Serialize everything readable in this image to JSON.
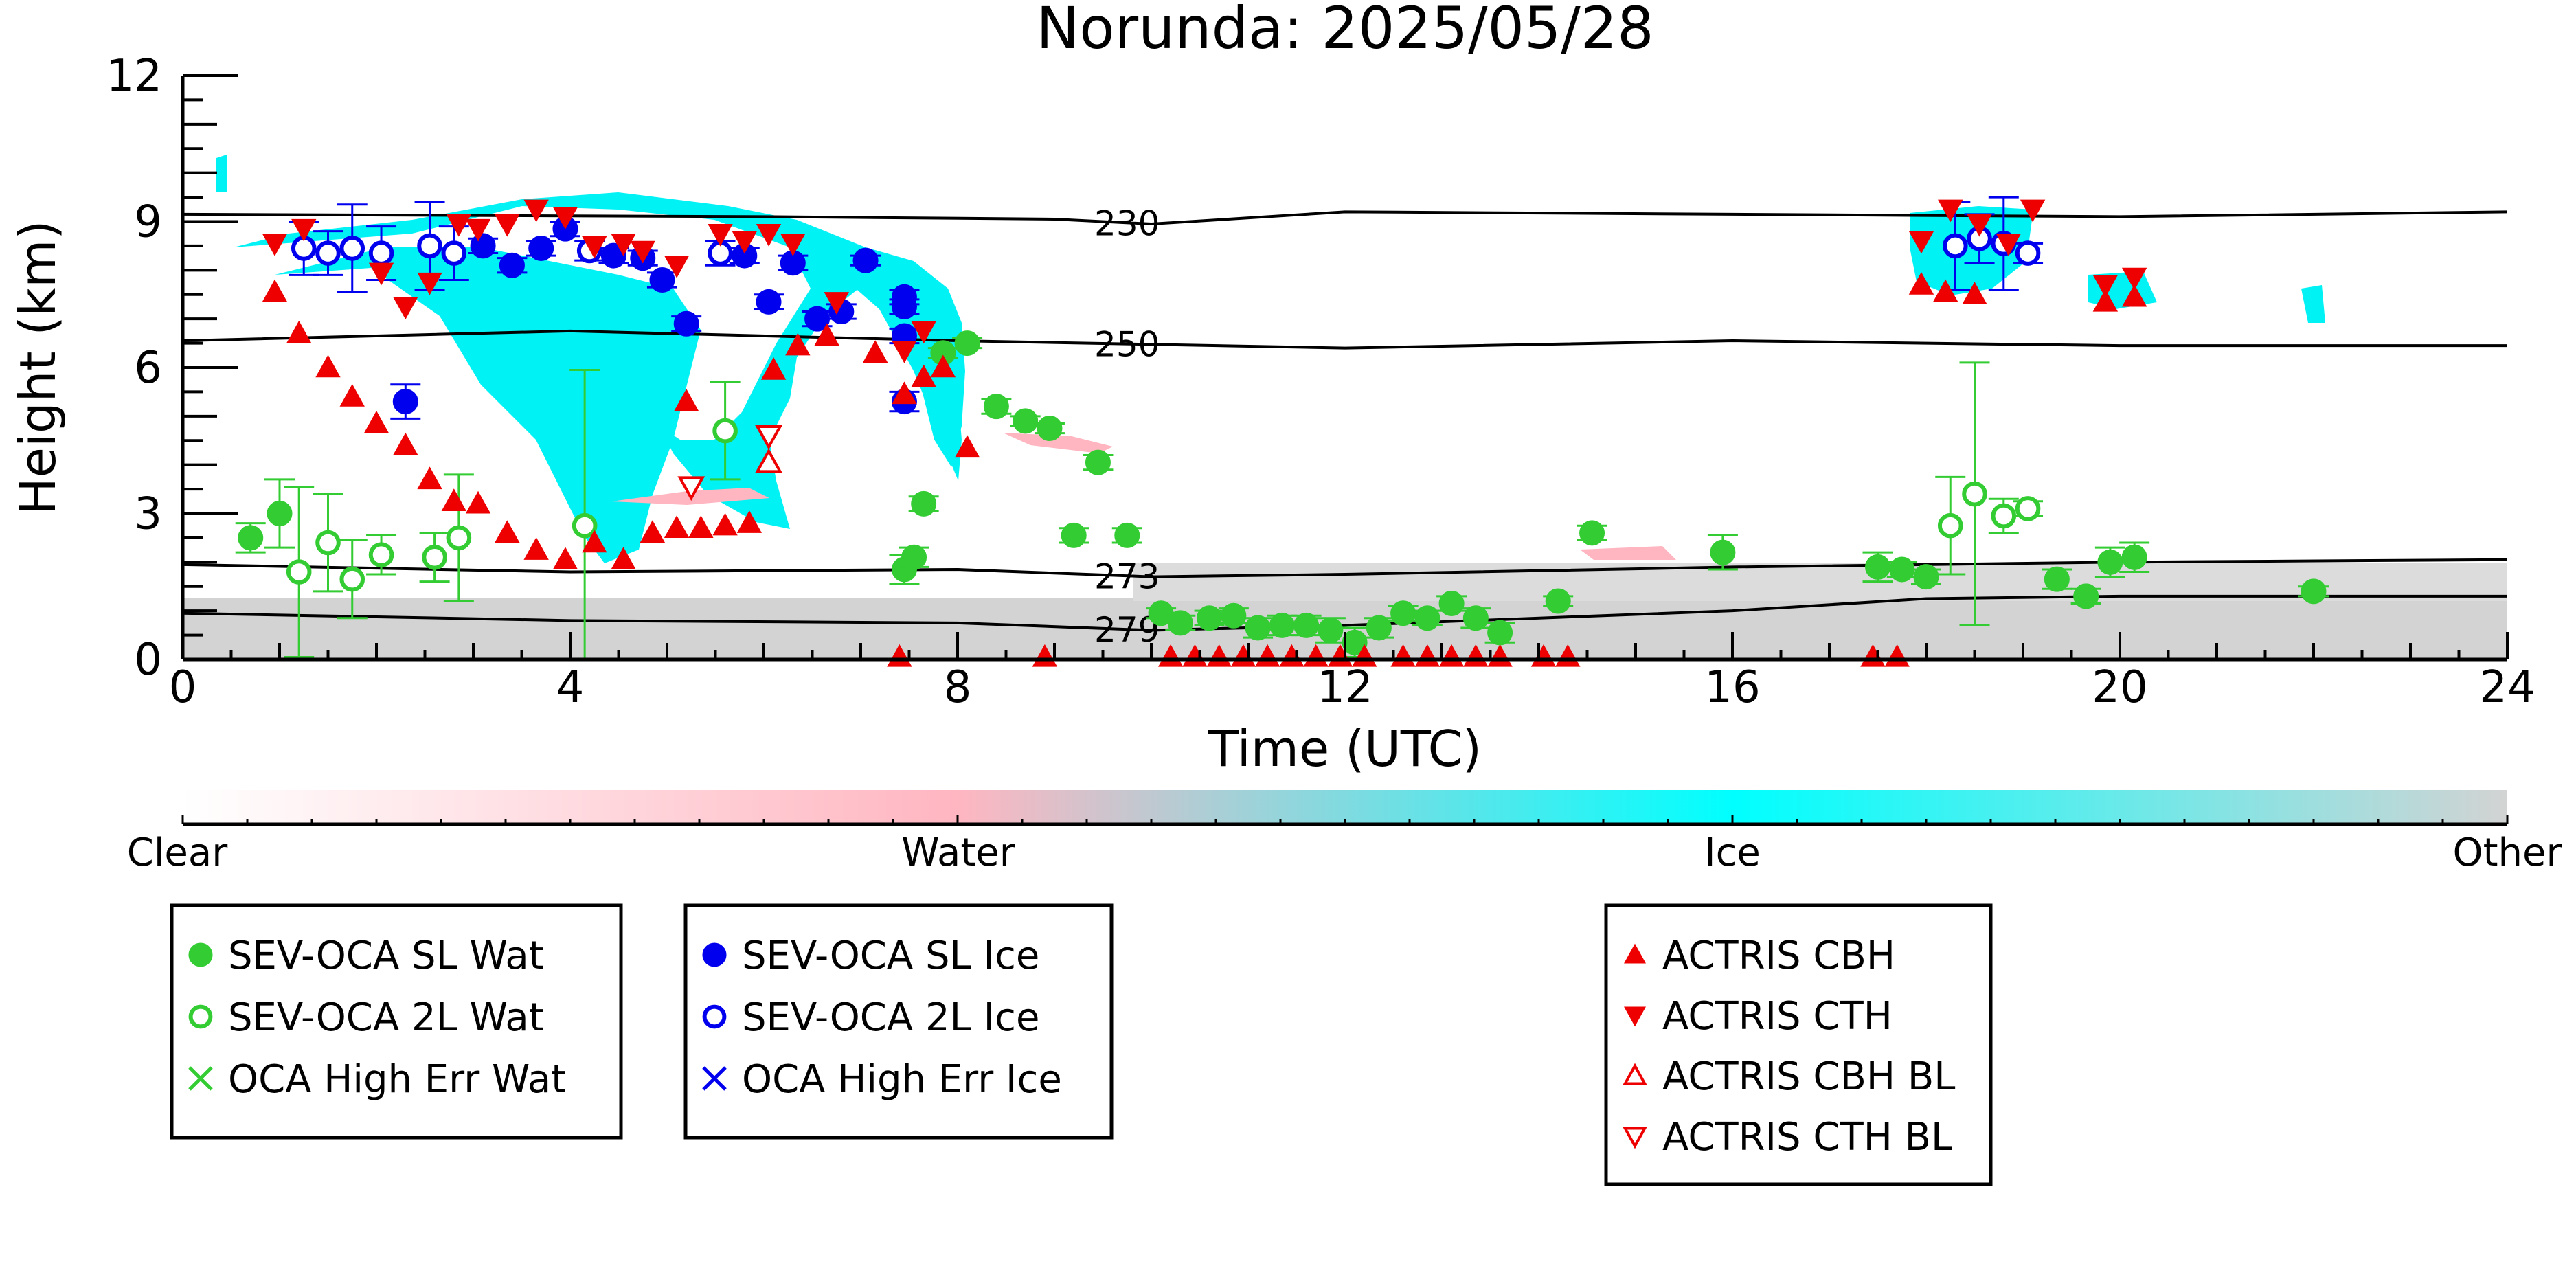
{
  "chart_data": {
    "type": "scatter",
    "title": "Norunda: 2025/05/28",
    "xlabel": "Time (UTC)",
    "ylabel": "Height (km)",
    "xlim": [
      0,
      24
    ],
    "ylim": [
      0,
      12
    ],
    "xticks": [
      0,
      4,
      8,
      12,
      16,
      20,
      24
    ],
    "yticks": [
      0,
      3,
      6,
      9,
      12
    ],
    "background": "cloud phase cross-section (clear / water / ice / other)",
    "colorbar": {
      "labels": [
        "Clear",
        "Water",
        "Ice",
        "Other"
      ],
      "colors": [
        "#ffffff",
        "#ffb6c1",
        "#00ffff",
        "#d3d3d3"
      ]
    },
    "temperature_contours": [
      {
        "label": "230",
        "x": [
          0,
          6,
          9,
          10,
          12,
          16,
          20,
          24
        ],
        "y": [
          9.15,
          9.1,
          9.05,
          8.95,
          9.2,
          9.15,
          9.1,
          9.2
        ]
      },
      {
        "label": "250",
        "x": [
          0,
          4,
          8,
          12,
          16,
          20,
          24
        ],
        "y": [
          6.55,
          6.75,
          6.55,
          6.4,
          6.55,
          6.45,
          6.45
        ]
      },
      {
        "label": "273",
        "x": [
          0,
          4,
          8,
          10,
          12,
          16,
          20,
          24
        ],
        "y": [
          1.95,
          1.8,
          1.85,
          1.7,
          1.75,
          1.9,
          2.0,
          2.05
        ]
      },
      {
        "label": "279",
        "x": [
          0,
          4,
          8,
          10,
          12,
          16,
          18,
          20,
          24
        ],
        "y": [
          0.95,
          0.8,
          0.75,
          0.6,
          0.7,
          1.0,
          1.25,
          1.3,
          1.3
        ]
      }
    ],
    "series": [
      {
        "name": "SEV-OCA SL Wat",
        "marker": "filled-circle",
        "color": "#33cc33",
        "points": [
          {
            "x": 0.7,
            "y": 2.5,
            "err": 0.3
          },
          {
            "x": 1.0,
            "y": 3.0,
            "err": 0.7
          },
          {
            "x": 7.45,
            "y": 1.85,
            "err": 0.3
          },
          {
            "x": 7.55,
            "y": 2.1,
            "err": 0.2
          },
          {
            "x": 7.65,
            "y": 3.2,
            "err": 0.15
          },
          {
            "x": 7.85,
            "y": 6.3,
            "err": 0.1
          },
          {
            "x": 8.1,
            "y": 6.5,
            "err": 0.1
          },
          {
            "x": 8.4,
            "y": 5.2,
            "err": 0.15
          },
          {
            "x": 8.7,
            "y": 4.9,
            "err": 0.1
          },
          {
            "x": 8.95,
            "y": 4.75,
            "err": 0.1
          },
          {
            "x": 9.2,
            "y": 2.55,
            "err": 0.15
          },
          {
            "x": 9.45,
            "y": 4.05,
            "err": 0.15
          },
          {
            "x": 9.75,
            "y": 2.55,
            "err": 0.15
          },
          {
            "x": 10.1,
            "y": 0.95,
            "err": 0.1
          },
          {
            "x": 10.3,
            "y": 0.75,
            "err": 0.15
          },
          {
            "x": 10.6,
            "y": 0.85,
            "err": 0.15
          },
          {
            "x": 10.85,
            "y": 0.9,
            "err": 0.15
          },
          {
            "x": 11.1,
            "y": 0.65,
            "err": 0.2
          },
          {
            "x": 11.35,
            "y": 0.7,
            "err": 0.2
          },
          {
            "x": 11.6,
            "y": 0.7,
            "err": 0.2
          },
          {
            "x": 11.85,
            "y": 0.6,
            "err": 0.25
          },
          {
            "x": 12.1,
            "y": 0.35,
            "err": 0.3
          },
          {
            "x": 12.35,
            "y": 0.65,
            "err": 0.2
          },
          {
            "x": 12.6,
            "y": 0.95,
            "err": 0.15
          },
          {
            "x": 12.85,
            "y": 0.85,
            "err": 0.15
          },
          {
            "x": 13.1,
            "y": 1.15,
            "err": 0.15
          },
          {
            "x": 13.35,
            "y": 0.85,
            "err": 0.2
          },
          {
            "x": 13.6,
            "y": 0.55,
            "err": 0.2
          },
          {
            "x": 14.2,
            "y": 1.2,
            "err": 0.1
          },
          {
            "x": 14.55,
            "y": 2.6,
            "err": 0.15
          },
          {
            "x": 15.9,
            "y": 2.2,
            "err": 0.35
          },
          {
            "x": 17.5,
            "y": 1.9,
            "err": 0.3
          },
          {
            "x": 17.75,
            "y": 1.85,
            "err": 0.15
          },
          {
            "x": 18.0,
            "y": 1.7,
            "err": 0.15
          },
          {
            "x": 19.35,
            "y": 1.65,
            "err": 0.2
          },
          {
            "x": 19.65,
            "y": 1.3,
            "err": 0.15
          },
          {
            "x": 19.9,
            "y": 2.0,
            "err": 0.3
          },
          {
            "x": 20.15,
            "y": 2.1,
            "err": 0.3
          },
          {
            "x": 22.0,
            "y": 1.4,
            "err": 0.1
          }
        ]
      },
      {
        "name": "SEV-OCA 2L Wat",
        "marker": "open-circle",
        "color": "#33cc33",
        "points": [
          {
            "x": 1.2,
            "y": 1.8,
            "err": 1.75
          },
          {
            "x": 1.5,
            "y": 2.4,
            "err": 1.0
          },
          {
            "x": 1.75,
            "y": 1.65,
            "err": 0.8
          },
          {
            "x": 2.05,
            "y": 2.15,
            "err": 0.4
          },
          {
            "x": 2.6,
            "y": 2.1,
            "err": 0.5
          },
          {
            "x": 2.85,
            "y": 2.5,
            "err": 1.3
          },
          {
            "x": 4.15,
            "y": 2.75,
            "err": 3.2
          },
          {
            "x": 5.6,
            "y": 4.7,
            "err": 1.0
          },
          {
            "x": 18.25,
            "y": 2.75,
            "err": 1.0
          },
          {
            "x": 18.5,
            "y": 3.4,
            "err": 2.7
          },
          {
            "x": 18.8,
            "y": 2.95,
            "err": 0.35
          },
          {
            "x": 19.05,
            "y": 3.1,
            "err": 0.15
          }
        ]
      },
      {
        "name": "OCA High Err Wat",
        "marker": "x",
        "color": "#33cc33",
        "points": []
      },
      {
        "name": "SEV-OCA SL Ice",
        "marker": "filled-circle",
        "color": "#0000ee",
        "points": [
          {
            "x": 2.3,
            "y": 5.3,
            "err": 0.35
          },
          {
            "x": 3.1,
            "y": 8.5,
            "err": 0.15
          },
          {
            "x": 3.4,
            "y": 8.1,
            "err": 0.15
          },
          {
            "x": 3.7,
            "y": 8.45,
            "err": 0.15
          },
          {
            "x": 3.95,
            "y": 8.85,
            "err": 0.15
          },
          {
            "x": 4.45,
            "y": 8.3,
            "err": 0.15
          },
          {
            "x": 4.75,
            "y": 8.25,
            "err": 0.15
          },
          {
            "x": 4.95,
            "y": 7.8,
            "err": 0.15
          },
          {
            "x": 5.2,
            "y": 6.9,
            "err": 0.15
          },
          {
            "x": 5.8,
            "y": 8.3,
            "err": 0.15
          },
          {
            "x": 6.05,
            "y": 7.35,
            "err": 0.15
          },
          {
            "x": 6.3,
            "y": 8.15,
            "err": 0.15
          },
          {
            "x": 6.55,
            "y": 7.0,
            "err": 0.15
          },
          {
            "x": 6.8,
            "y": 7.15,
            "err": 0.15
          },
          {
            "x": 7.05,
            "y": 8.2,
            "err": 0.1
          },
          {
            "x": 7.45,
            "y": 7.45,
            "err": 0.15
          },
          {
            "x": 7.45,
            "y": 7.25,
            "err": 0.15
          },
          {
            "x": 7.45,
            "y": 6.65,
            "err": 0.15
          },
          {
            "x": 7.45,
            "y": 5.3,
            "err": 0.2
          }
        ]
      },
      {
        "name": "SEV-OCA 2L Ice",
        "marker": "open-circle",
        "color": "#0000ee",
        "points": [
          {
            "x": 1.25,
            "y": 8.45,
            "err": 0.55
          },
          {
            "x": 1.5,
            "y": 8.35,
            "err": 0.45
          },
          {
            "x": 1.75,
            "y": 8.45,
            "err": 0.9
          },
          {
            "x": 2.05,
            "y": 8.35,
            "err": 0.55
          },
          {
            "x": 2.55,
            "y": 8.5,
            "err": 0.9
          },
          {
            "x": 2.8,
            "y": 8.35,
            "err": 0.55
          },
          {
            "x": 4.2,
            "y": 8.4,
            "err": 0.2
          },
          {
            "x": 5.55,
            "y": 8.35,
            "err": 0.25
          },
          {
            "x": 18.3,
            "y": 8.5,
            "err": 0.9
          },
          {
            "x": 18.55,
            "y": 8.65,
            "err": 0.5
          },
          {
            "x": 18.8,
            "y": 8.55,
            "err": 0.95
          },
          {
            "x": 19.05,
            "y": 8.35,
            "err": 0.2
          }
        ]
      },
      {
        "name": "OCA High Err Ice",
        "marker": "x",
        "color": "#0000ee",
        "points": []
      },
      {
        "name": "ACTRIS CBH",
        "marker": "triangle-up",
        "color": "#ee0000",
        "points": [
          {
            "x": 0.95,
            "y": 7.55
          },
          {
            "x": 1.2,
            "y": 6.7
          },
          {
            "x": 1.5,
            "y": 6.0
          },
          {
            "x": 1.75,
            "y": 5.4
          },
          {
            "x": 2.0,
            "y": 4.85
          },
          {
            "x": 2.3,
            "y": 4.4
          },
          {
            "x": 2.55,
            "y": 3.7
          },
          {
            "x": 2.8,
            "y": 3.25
          },
          {
            "x": 3.05,
            "y": 3.2
          },
          {
            "x": 3.35,
            "y": 2.6
          },
          {
            "x": 3.65,
            "y": 2.25
          },
          {
            "x": 3.95,
            "y": 2.05
          },
          {
            "x": 4.25,
            "y": 2.4
          },
          {
            "x": 4.55,
            "y": 2.05
          },
          {
            "x": 4.85,
            "y": 2.6
          },
          {
            "x": 5.1,
            "y": 2.7
          },
          {
            "x": 5.35,
            "y": 2.7
          },
          {
            "x": 5.6,
            "y": 2.75
          },
          {
            "x": 5.85,
            "y": 2.8
          },
          {
            "x": 6.1,
            "y": 5.95
          },
          {
            "x": 6.35,
            "y": 6.45
          },
          {
            "x": 6.65,
            "y": 6.65
          },
          {
            "x": 7.15,
            "y": 6.3
          },
          {
            "x": 7.45,
            "y": 5.45
          },
          {
            "x": 7.65,
            "y": 5.8
          },
          {
            "x": 7.85,
            "y": 6.0
          },
          {
            "x": 8.1,
            "y": 4.35
          },
          {
            "x": 5.2,
            "y": 5.3
          },
          {
            "x": 7.4,
            "y": 0.05
          },
          {
            "x": 8.9,
            "y": 0.05
          },
          {
            "x": 10.2,
            "y": 0.05
          },
          {
            "x": 10.45,
            "y": 0.05
          },
          {
            "x": 10.7,
            "y": 0.05
          },
          {
            "x": 10.95,
            "y": 0.05
          },
          {
            "x": 11.2,
            "y": 0.05
          },
          {
            "x": 11.45,
            "y": 0.05
          },
          {
            "x": 11.7,
            "y": 0.05
          },
          {
            "x": 11.95,
            "y": 0.05
          },
          {
            "x": 12.2,
            "y": 0.05
          },
          {
            "x": 12.6,
            "y": 0.05
          },
          {
            "x": 12.85,
            "y": 0.05
          },
          {
            "x": 13.1,
            "y": 0.05
          },
          {
            "x": 13.35,
            "y": 0.05
          },
          {
            "x": 13.6,
            "y": 0.05
          },
          {
            "x": 14.05,
            "y": 0.05
          },
          {
            "x": 14.3,
            "y": 0.05
          },
          {
            "x": 17.45,
            "y": 0.05
          },
          {
            "x": 17.7,
            "y": 0.05
          },
          {
            "x": 17.95,
            "y": 7.7
          },
          {
            "x": 18.2,
            "y": 7.55
          },
          {
            "x": 18.5,
            "y": 7.5
          },
          {
            "x": 19.85,
            "y": 7.35
          },
          {
            "x": 20.15,
            "y": 7.45
          }
        ]
      },
      {
        "name": "ACTRIS CTH",
        "marker": "triangle-down",
        "color": "#ee0000",
        "points": [
          {
            "x": 0.95,
            "y": 8.55
          },
          {
            "x": 1.25,
            "y": 8.85
          },
          {
            "x": 2.05,
            "y": 7.95
          },
          {
            "x": 2.3,
            "y": 7.25
          },
          {
            "x": 2.55,
            "y": 7.75
          },
          {
            "x": 2.85,
            "y": 8.95
          },
          {
            "x": 3.05,
            "y": 8.85
          },
          {
            "x": 3.35,
            "y": 8.95
          },
          {
            "x": 3.65,
            "y": 9.25
          },
          {
            "x": 3.95,
            "y": 9.1
          },
          {
            "x": 4.25,
            "y": 8.5
          },
          {
            "x": 4.55,
            "y": 8.55
          },
          {
            "x": 4.75,
            "y": 8.4
          },
          {
            "x": 5.1,
            "y": 8.1
          },
          {
            "x": 5.55,
            "y": 8.75
          },
          {
            "x": 5.8,
            "y": 8.6
          },
          {
            "x": 6.05,
            "y": 8.75
          },
          {
            "x": 6.3,
            "y": 8.55
          },
          {
            "x": 6.75,
            "y": 7.35
          },
          {
            "x": 7.45,
            "y": 6.35
          },
          {
            "x": 7.65,
            "y": 6.75
          },
          {
            "x": 17.95,
            "y": 8.6
          },
          {
            "x": 18.25,
            "y": 9.25
          },
          {
            "x": 18.55,
            "y": 8.95
          },
          {
            "x": 18.85,
            "y": 8.55
          },
          {
            "x": 19.1,
            "y": 9.25
          },
          {
            "x": 19.85,
            "y": 7.7
          },
          {
            "x": 20.15,
            "y": 7.85
          }
        ]
      },
      {
        "name": "ACTRIS CBH BL",
        "marker": "open-triangle-up",
        "color": "#ee0000",
        "points": [
          {
            "x": 6.05,
            "y": 4.05
          }
        ]
      },
      {
        "name": "ACTRIS CTH BL",
        "marker": "open-triangle-down",
        "color": "#ee0000",
        "points": [
          {
            "x": 5.25,
            "y": 3.55
          },
          {
            "x": 6.05,
            "y": 4.6
          }
        ]
      }
    ],
    "legend": {
      "placement": "below plot, three boxes",
      "groups": [
        [
          "SEV-OCA SL Wat",
          "SEV-OCA 2L Wat",
          "OCA High Err Wat"
        ],
        [
          "SEV-OCA SL Ice",
          "SEV-OCA 2L Ice",
          "OCA High Err Ice"
        ],
        [
          "ACTRIS CBH",
          "ACTRIS CTH",
          "ACTRIS CBH BL",
          "ACTRIS CTH BL"
        ]
      ]
    }
  }
}
